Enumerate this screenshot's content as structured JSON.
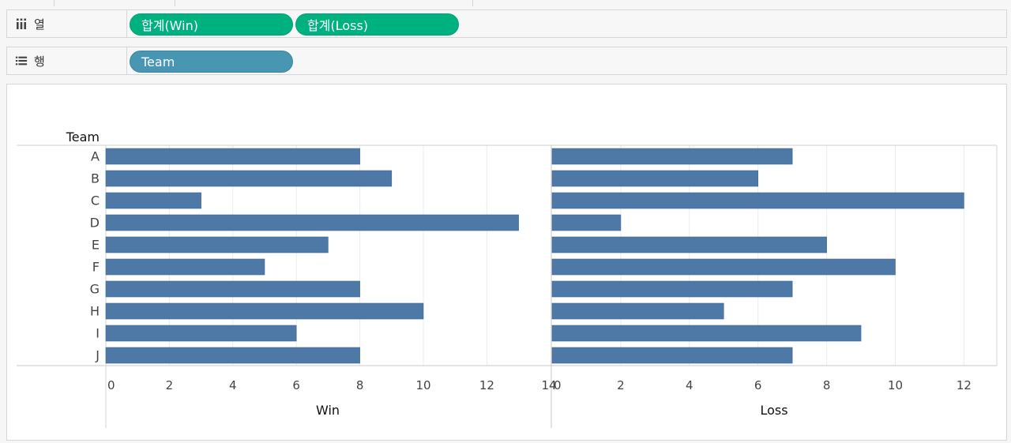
{
  "shelves": {
    "columns": {
      "label": "열",
      "icon": "columns-icon",
      "pills": [
        "합계(Win)",
        "합계(Loss)"
      ]
    },
    "rows": {
      "label": "행",
      "icon": "rows-icon",
      "pills": [
        "Team"
      ]
    }
  },
  "colors": {
    "bar": "#4e79a7",
    "measure_pill": "#00b180",
    "dimension_pill": "#4996b2"
  },
  "chart_data": [
    {
      "type": "bar",
      "orientation": "horizontal",
      "row_header": "Team",
      "categories": [
        "A",
        "B",
        "C",
        "D",
        "E",
        "F",
        "G",
        "H",
        "I",
        "J"
      ],
      "values": [
        8,
        9,
        3,
        13,
        7,
        5,
        8,
        10,
        6,
        8
      ],
      "xlabel": "Win",
      "xlim": [
        0,
        14
      ],
      "xticks": [
        "0",
        "2",
        "4",
        "6",
        "8",
        "10",
        "12",
        "14"
      ],
      "grid": true
    },
    {
      "type": "bar",
      "orientation": "horizontal",
      "categories": [
        "A",
        "B",
        "C",
        "D",
        "E",
        "F",
        "G",
        "H",
        "I",
        "J"
      ],
      "values": [
        7,
        6,
        12,
        2,
        8,
        10,
        7,
        5,
        9,
        7
      ],
      "xlabel": "Loss",
      "xlim": [
        0,
        13
      ],
      "xticks": [
        "0",
        "2",
        "4",
        "6",
        "8",
        "10",
        "12"
      ],
      "grid": true
    }
  ]
}
